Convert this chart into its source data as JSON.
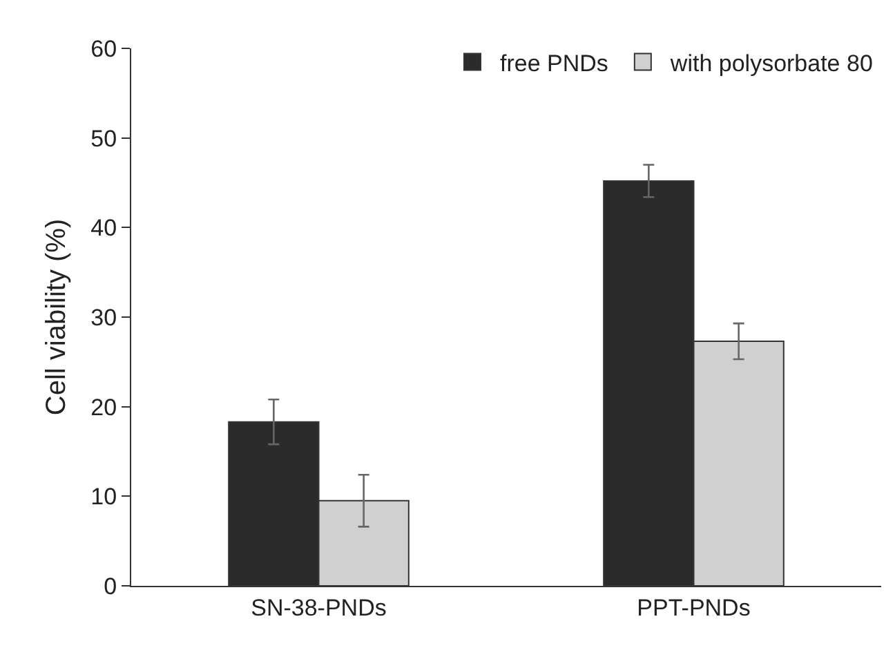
{
  "chart_data": {
    "type": "bar",
    "ylabel": "Cell viability (%)",
    "categories": [
      "SN-38-PNDs",
      "PPT-PNDs"
    ],
    "series": [
      {
        "name": "free PNDs",
        "color": "#2b2b2b",
        "values": [
          18.3,
          45.2
        ],
        "errors": [
          2.5,
          1.8
        ]
      },
      {
        "name": "with polysorbate 80",
        "color": "#d0d0d0",
        "values": [
          9.5,
          27.3
        ],
        "errors": [
          2.9,
          2.0
        ]
      }
    ],
    "ylim": [
      0,
      60
    ],
    "yticks": [
      0,
      10,
      20,
      30,
      40,
      50,
      60
    ],
    "grid": false,
    "legend": "top right"
  }
}
